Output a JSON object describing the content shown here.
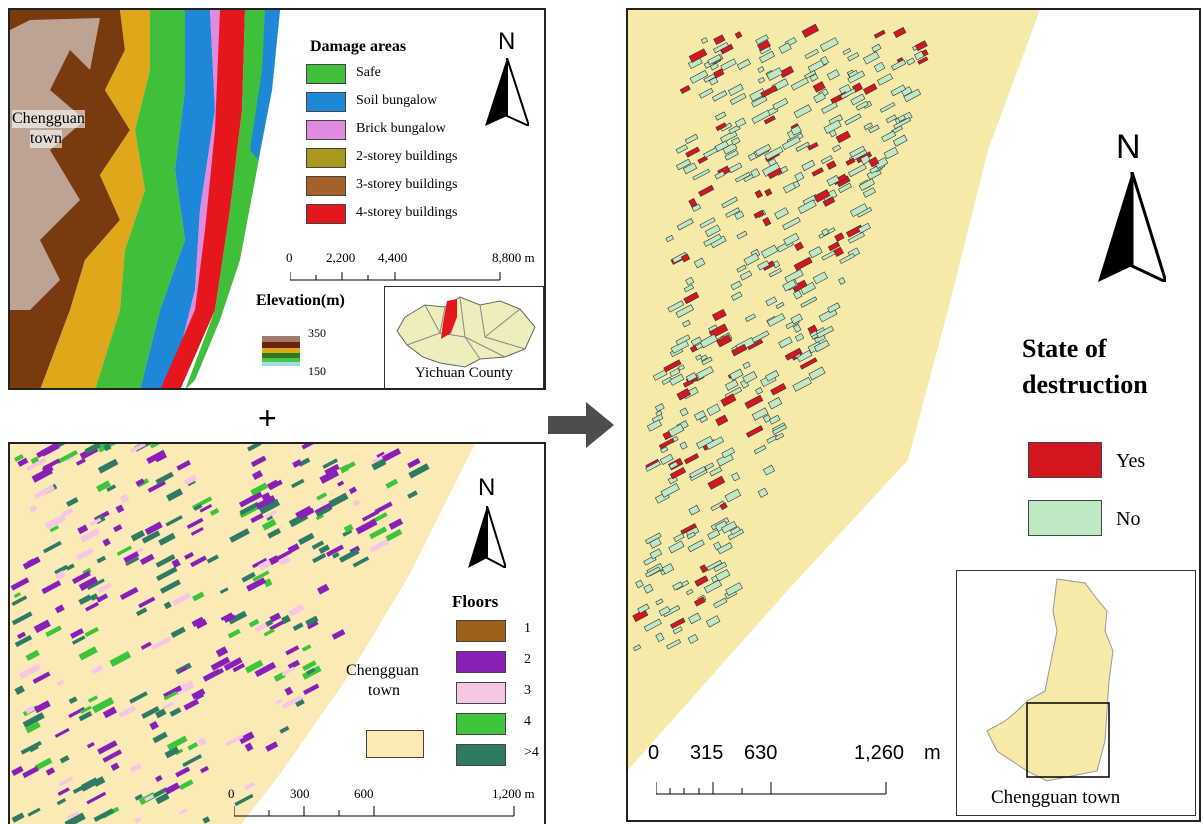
{
  "panel_a": {
    "place_label_1": "Chengguan",
    "place_label_2": "town",
    "legend_title": "Damage areas",
    "legend_items": [
      {
        "label": "Safe",
        "color": "#3fbf3a"
      },
      {
        "label": "Soil bungalow",
        "color": "#1e88d8"
      },
      {
        "label": "Brick bungalow",
        "color": "#e08be0"
      },
      {
        "label": "2-storey  buildings",
        "color": "#a89a1e"
      },
      {
        "label": "3-storey  buildings",
        "color": "#a5612a"
      },
      {
        "label": "4-storey  buildings",
        "color": "#e5171c"
      }
    ],
    "north": "N",
    "scale_labels": [
      "0",
      "2,200",
      "4,400",
      "8,800 m"
    ],
    "elevation_title": "Elevation(m)",
    "elevation_max": "350",
    "elevation_min": "150",
    "inset_label": "Yichuan County"
  },
  "plus": "+",
  "panel_b": {
    "north": "N",
    "legend_title": "Floors",
    "legend_items": [
      {
        "label": "1",
        "color": "#9c5f1c"
      },
      {
        "label": "2",
        "color": "#8a1fb8"
      },
      {
        "label": "3",
        "color": "#f7c6e4"
      },
      {
        "label": "4",
        "color": "#3cc43a"
      },
      {
        "label": ">4",
        "color": "#2f7a63"
      }
    ],
    "town_label_1": "Chengguan",
    "town_label_2": "town",
    "town_color": "#fbeab5",
    "scale_labels": [
      "0",
      "300",
      "600",
      "1,200 m"
    ]
  },
  "panel_c": {
    "north": "N",
    "legend_title_1": "State of",
    "legend_title_2": "destruction",
    "legend_items": [
      {
        "label": "Yes",
        "color": "#d41620"
      },
      {
        "label": "No",
        "color": "#bfe8c4"
      }
    ],
    "scale_labels": [
      "0",
      "315",
      "630",
      "1,260",
      "m"
    ],
    "inset_label": "Chengguan town",
    "town_color": "#f5eaa8"
  }
}
